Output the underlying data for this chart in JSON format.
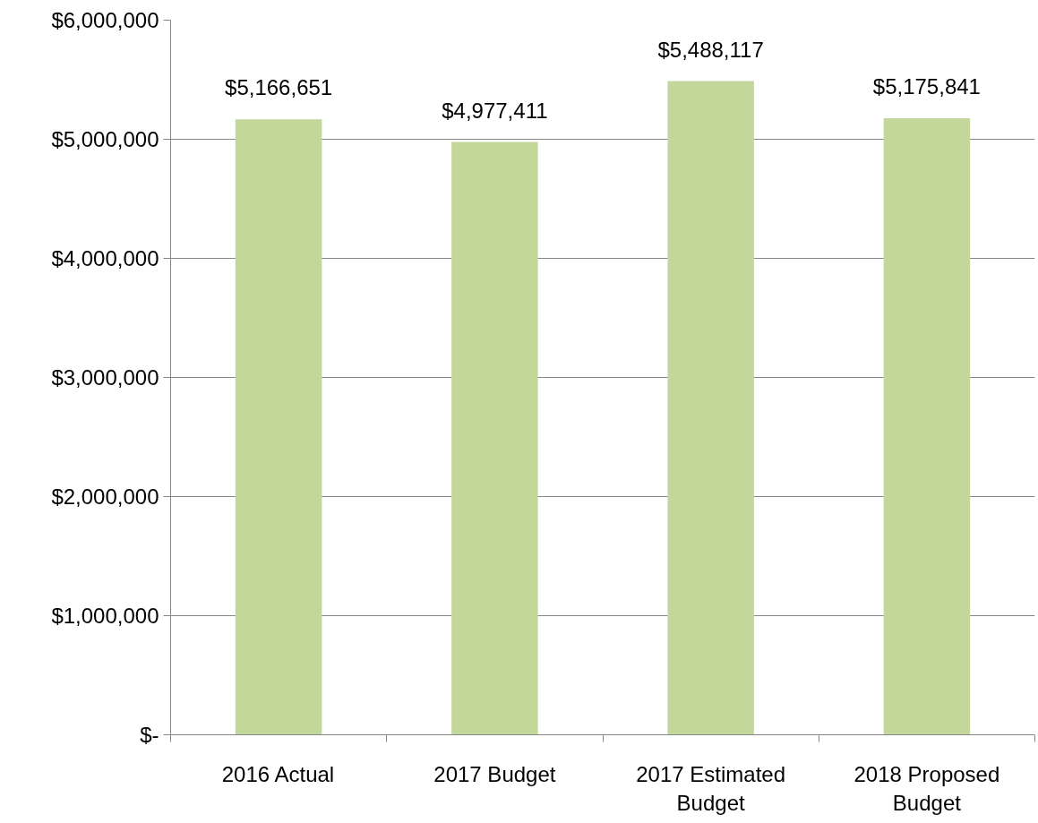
{
  "chart_data": {
    "type": "bar",
    "categories": [
      "2016 Actual",
      "2017 Budget",
      "2017 Estimated Budget",
      "2018 Proposed Budget"
    ],
    "values": [
      5166651,
      4977411,
      5488117,
      5175841
    ],
    "color": "#c4d79b",
    "value_labels": [
      "$5,166,651",
      "$4,977,411",
      "$5,488,117",
      "$5,175,841"
    ],
    "ylim": [
      0,
      6000000
    ],
    "yticks": [
      {
        "value": 0,
        "label": "$-"
      },
      {
        "value": 1000000,
        "label": "$1,000,000"
      },
      {
        "value": 2000000,
        "label": "$2,000,000"
      },
      {
        "value": 3000000,
        "label": "$3,000,000"
      },
      {
        "value": 4000000,
        "label": "$4,000,000"
      },
      {
        "value": 5000000,
        "label": "$5,000,000"
      },
      {
        "value": 6000000,
        "label": "$6,000,000"
      }
    ],
    "grid": "y"
  }
}
